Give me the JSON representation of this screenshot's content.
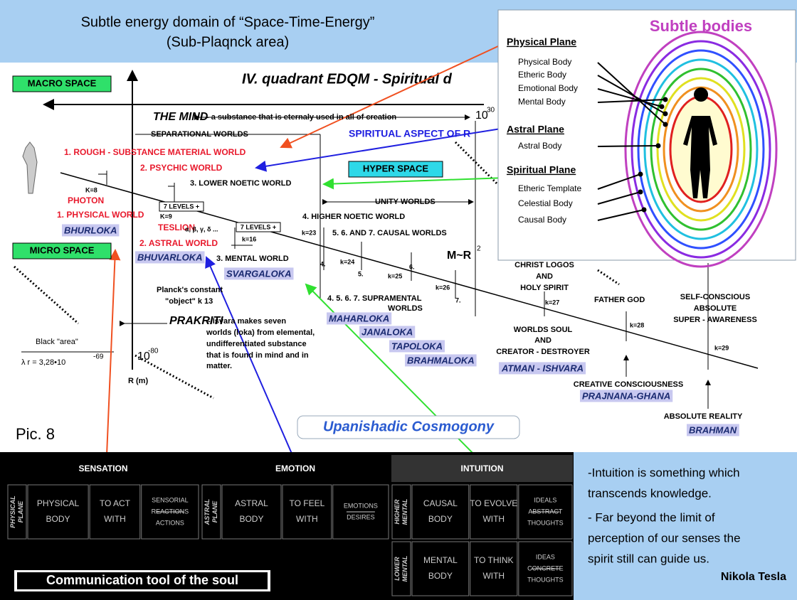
{
  "header": {
    "title": "Subtle energy domain of “Space-Time-Energy”",
    "subtitle": "(Sub-Plaqnck area)"
  },
  "diagram": {
    "quadrant_title": "IV. quadrant EDQM - Spiritual d",
    "macro_space": "MACRO SPACE",
    "micro_space": "MICRO SPACE",
    "hyper_space": "HYPER SPACE",
    "labels": [
      "THE MIND",
      "- a substance that is eternaly used in all of creation",
      "10",
      "30",
      "SEPARATIONAL WORLDS",
      "SPIRITUAL ASPECT OF R",
      "1. ROUGH - SUBSTANCE MATERIAL WORLD",
      "2. PSYCHIC WORLD",
      "3. LOWER NOETIC WORLD",
      "K=8",
      "PHOTON",
      "UNITY WORLDS",
      "1. PHYSICAL WORLD",
      "K=9",
      "4. HIGHER NOETIC WORLD",
      "TESLION",
      "α, β, γ, δ ...",
      "k=23",
      "5. 6. AND 7. CAUSAL WORLDS",
      "k=16",
      "2. ASTRAL WORLD",
      "3. MENTAL WORLD",
      "M~R",
      "2",
      "4.",
      "k=24",
      "5.",
      "6.",
      "k=25",
      "k=26",
      "7.",
      "CHRIST LOGOS",
      "AND",
      "HOLY SPIRIT",
      "Planck's constant",
      "\"object\" k 13",
      "4. 5. 6. 7. SUPRAMENTAL",
      "WORLDS",
      "k=27",
      "FATHER GOD",
      "SELF-CONSCIOUS",
      "ABSOLUTE",
      "SUPER - AWARENESS",
      "PRAKRITI",
      "- Isvara makes seven",
      "worlds (loka) from elemental,",
      "undifferentiated substance",
      "that is found in mind and in",
      "matter.",
      "k=28",
      "WORLDS SOUL",
      "AND",
      "CREATOR - DESTROYER",
      "Black \"area\"",
      "λ r = 3,28•10",
      "-69",
      "k=29",
      "10",
      "-80",
      "R (m)",
      "CREATIVE CONSCIOUSNESS",
      "ABSOLUTE REALITY"
    ],
    "lokas": [
      "BHURLOKA",
      "BHUVARLOKA",
      "SVARGALOKA",
      "MAHARLOKA",
      "JANALOKA",
      "TAPOLOKA",
      "BRAHMALOKA",
      "ATMAN - ISHVARA",
      "PRAJNANA-GHANA",
      "BRAHMAN"
    ],
    "level_boxes": [
      "7 LEVELS +",
      "7 LEVELS +"
    ],
    "caption": "Pic. 8",
    "cosmogony": "Upanishadic Cosmogony"
  },
  "subtle_bodies": {
    "title": "Subtle bodies",
    "planes": [
      {
        "name": "Physical Plane",
        "bodies": [
          "Physical Body",
          "Etheric Body",
          "Emotional Body",
          "Mental Body"
        ]
      },
      {
        "name": "Astral Plane",
        "bodies": [
          "Astral Body"
        ]
      },
      {
        "name": "Spiritual Plane",
        "bodies": [
          "Etheric Template",
          "Celestial Body",
          "Causal Body"
        ]
      }
    ]
  },
  "table": {
    "groups": [
      {
        "heading": "SENSATION",
        "rows": [
          [
            [
              "PHYSICAL",
              "PLANE"
            ],
            [
              "PHYSICAL",
              "BODY"
            ],
            [
              "TO ACT",
              "WITH"
            ],
            [
              "SENSORIAL",
              "REACTIONS",
              "ACTIONS"
            ]
          ]
        ]
      },
      {
        "heading": "EMOTION",
        "rows": [
          [
            [
              "ASTRAL",
              "PLANE"
            ],
            [
              "ASTRAL",
              "BODY"
            ],
            [
              "TO FEEL",
              "WITH"
            ],
            [
              "EMOTIONS",
              "DESIRES"
            ]
          ]
        ]
      },
      {
        "heading": "INTUITION",
        "rows": [
          [
            [
              "HIGHER",
              "MENTAL"
            ],
            [
              "CAUSAL",
              "BODY"
            ],
            [
              "TO EVOLVE",
              "WITH"
            ],
            [
              "IDEALS",
              "ABSTRACT",
              "THOUGHTS"
            ]
          ],
          [
            [
              "LOWER",
              "MENTAL"
            ],
            [
              "MENTAL",
              "BODY"
            ],
            [
              "TO THINK",
              "WITH"
            ],
            [
              "IDEAS",
              "CONCRETE",
              "THOUGHTS"
            ]
          ]
        ]
      }
    ],
    "footer": "Communication tool of the soul"
  },
  "quote": {
    "lines": [
      "-Intuition is something which",
      "transcends knowledge.",
      "- Far beyond the limit of",
      "perception of our senses the",
      "spirit still can guide us."
    ],
    "author": "Nikola Tesla"
  }
}
